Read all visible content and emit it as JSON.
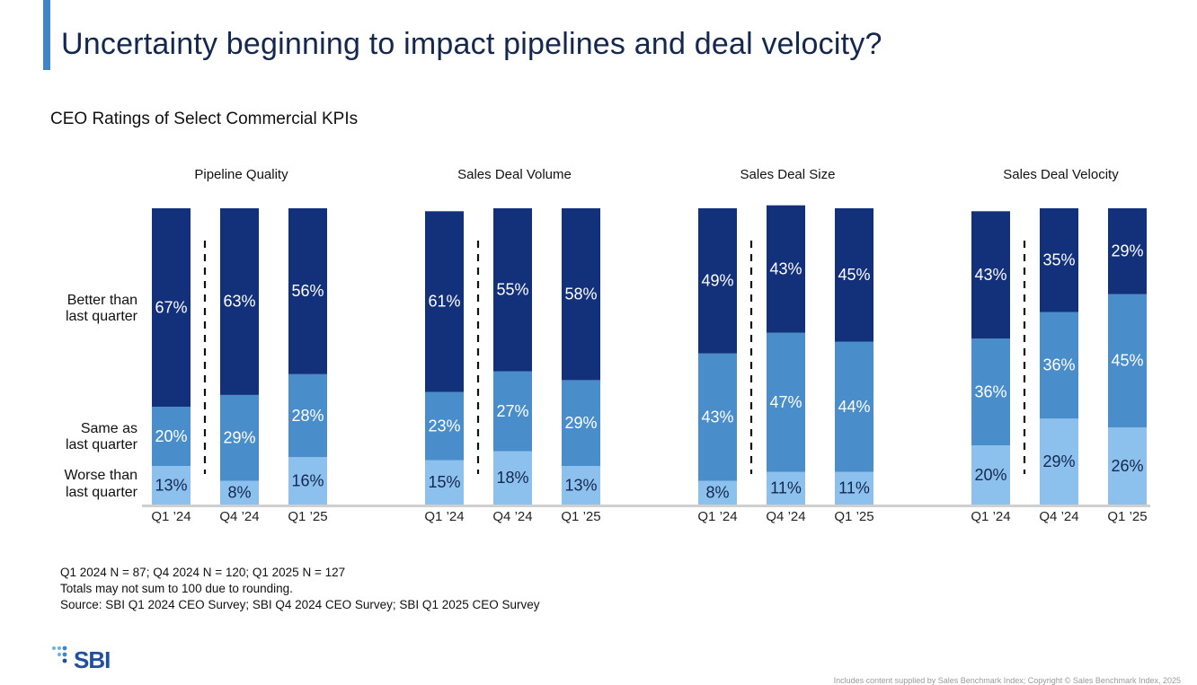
{
  "page": {
    "title": "Uncertainty beginning to impact pipelines and deal velocity?",
    "subtitle": "CEO Ratings of Select Commercial KPIs"
  },
  "colors": {
    "accent": "#3f86c6",
    "better": "#13307a",
    "same": "#4a8dcb",
    "worse": "#8cc1ee",
    "axis": "#cfcfcf"
  },
  "chart_data": {
    "type": "bar",
    "stacked": true,
    "title": "CEO Ratings of Select Commercial KPIs",
    "ylim": [
      0,
      100
    ],
    "series_names": [
      "Worse than last quarter",
      "Same as last quarter",
      "Better than last quarter"
    ],
    "row_labels": [
      [
        "Better than",
        "last quarter"
      ],
      [
        "Same as",
        "last quarter"
      ],
      [
        "Worse than",
        "last quarter"
      ]
    ],
    "panels": [
      {
        "title": "Pipeline Quality",
        "categories": [
          "Q1 ’24",
          "Q4 ’24",
          "Q1 ’25"
        ],
        "worse": [
          13,
          8,
          16
        ],
        "same": [
          20,
          29,
          28
        ],
        "better": [
          67,
          63,
          56
        ]
      },
      {
        "title": "Sales Deal Volume",
        "categories": [
          "Q1 ’24",
          "Q4 ’24",
          "Q1 ’25"
        ],
        "worse": [
          15,
          18,
          13
        ],
        "same": [
          23,
          27,
          29
        ],
        "better": [
          61,
          55,
          58
        ]
      },
      {
        "title": "Sales Deal Size",
        "categories": [
          "Q1 ’24",
          "Q4 ’24",
          "Q1 ’25"
        ],
        "worse": [
          8,
          11,
          11
        ],
        "same": [
          43,
          47,
          44
        ],
        "better": [
          49,
          43,
          45
        ]
      },
      {
        "title": "Sales Deal Velocity",
        "categories": [
          "Q1 ’24",
          "Q4 ’24",
          "Q1 ’25"
        ],
        "worse": [
          20,
          29,
          26
        ],
        "same": [
          36,
          36,
          45
        ],
        "better": [
          43,
          35,
          29
        ]
      }
    ]
  },
  "footnotes": {
    "line1": "Q1 2024 N = 87; Q4 2024 N = 120; Q1 2025 N = 127",
    "line2": "Totals may not sum to 100 due to rounding.",
    "line3": "Source: SBI Q1 2024 CEO Survey; SBI Q4 2024 CEO Survey; SBI Q1 2025 CEO Survey"
  },
  "logo": {
    "text": "SBI"
  },
  "copyright": "Includes content supplied by Sales Benchmark Index; Copyright © Sales Benchmark Index, 2025"
}
